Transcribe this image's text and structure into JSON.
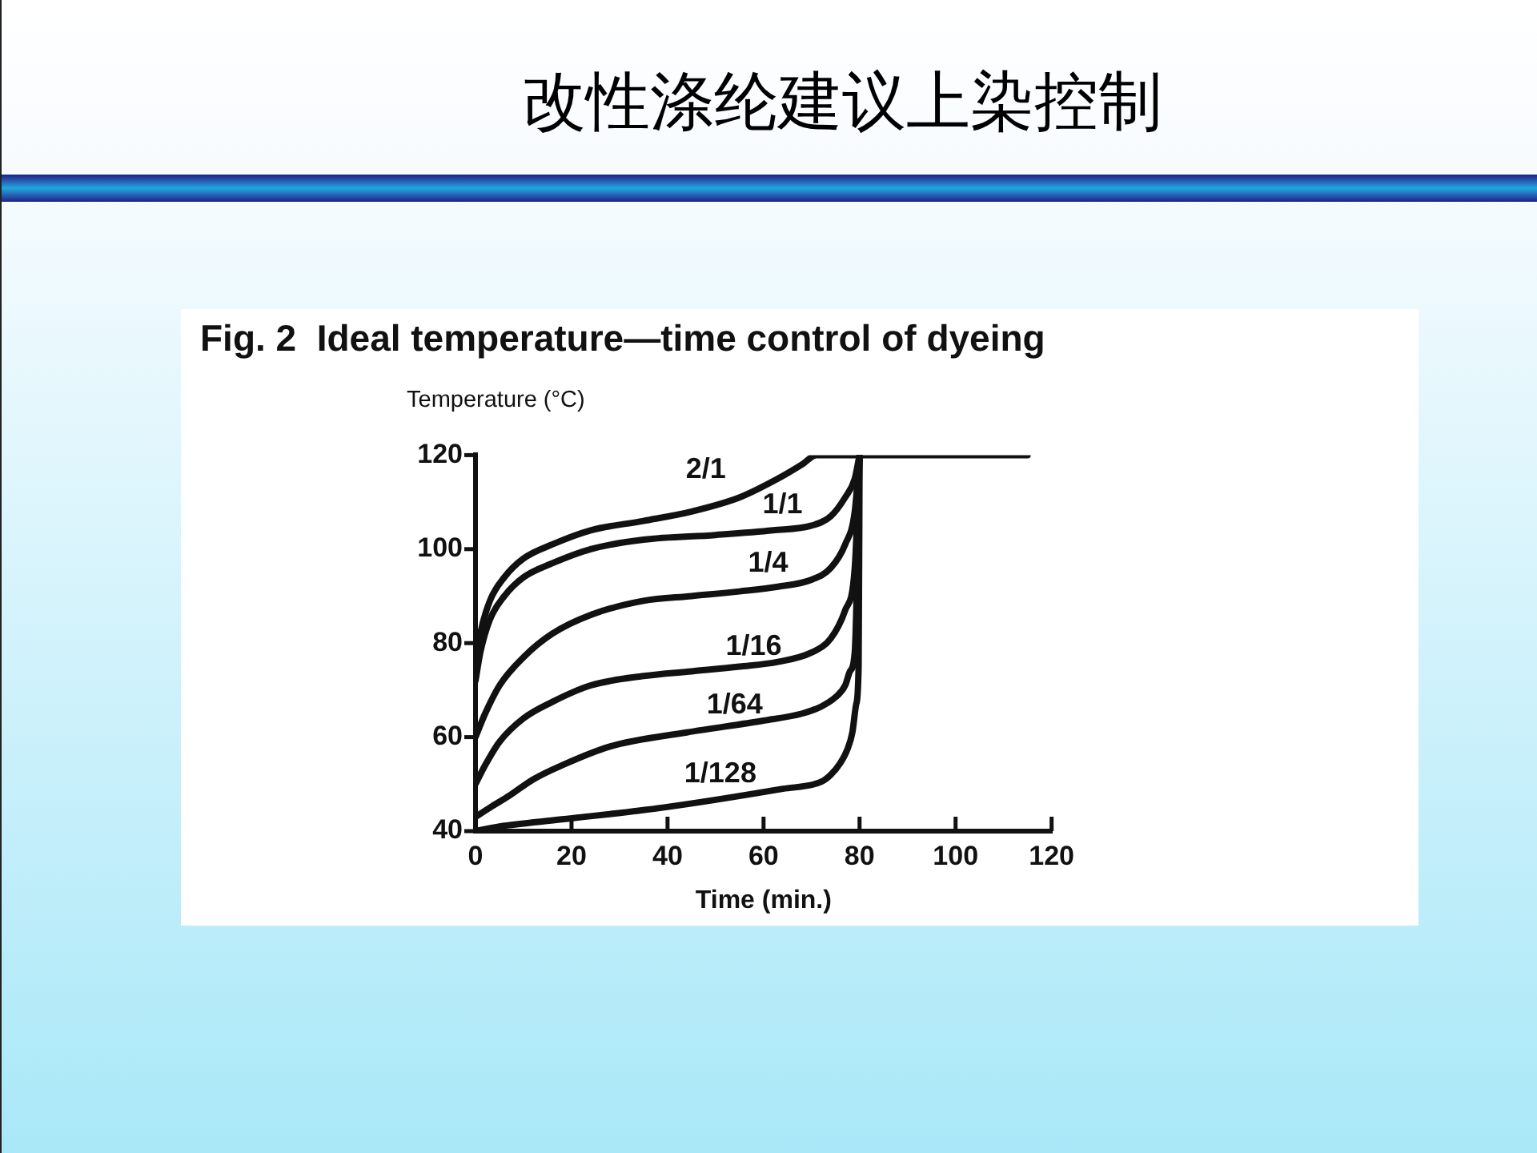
{
  "chart_data": {
    "type": "line",
    "title": "改性涤纶建议上染控制",
    "subtitle": "Fig. 2  Ideal temperature—time control of dyeing",
    "xlabel": "Time (min.)",
    "ylabel": "Temperature (°C)",
    "xlim": [
      0,
      120
    ],
    "xticks": [
      0,
      20,
      40,
      60,
      80,
      100,
      120
    ],
    "ylim": [
      40,
      120
    ],
    "yticks": [
      40,
      60,
      80,
      100,
      120
    ],
    "grid": false,
    "legend": false,
    "marker": "none",
    "line_style": "solid",
    "series": [
      {
        "name": "2/1",
        "color": "#111111",
        "x": [
          0,
          1,
          3,
          6,
          10,
          16,
          24,
          35,
          45,
          55,
          63,
          68,
          71,
          115
        ],
        "values": [
          75,
          82,
          89,
          94,
          98,
          101,
          104,
          106,
          108,
          111,
          115,
          118,
          120,
          120
        ]
      },
      {
        "name": "1/1",
        "color": "#111111",
        "x": [
          0,
          1,
          3,
          6,
          10,
          16,
          24,
          35,
          50,
          62,
          70,
          74,
          77,
          79,
          80
        ],
        "values": [
          72,
          78,
          85,
          90,
          94,
          97,
          100,
          102,
          103,
          104,
          105,
          107,
          111,
          115,
          120
        ]
      },
      {
        "name": "1/4",
        "color": "#111111",
        "x": [
          0,
          2,
          5,
          10,
          16,
          24,
          35,
          45,
          55,
          63,
          70,
          74,
          77,
          79,
          80
        ],
        "values": [
          60,
          65,
          71,
          77,
          82,
          86,
          89,
          90,
          91,
          92,
          93.5,
          96,
          101,
          108,
          120
        ]
      },
      {
        "name": "1/16",
        "color": "#111111",
        "x": [
          0,
          2,
          5,
          10,
          16,
          24,
          35,
          45,
          55,
          63,
          70,
          74,
          77,
          79,
          80
        ],
        "values": [
          50,
          54,
          59,
          64,
          67.5,
          71,
          73,
          74,
          75,
          76,
          78,
          81,
          87,
          96,
          120
        ]
      },
      {
        "name": "1/64",
        "color": "#111111",
        "x": [
          0,
          3,
          7,
          12,
          18,
          28,
          44,
          60,
          68,
          72,
          75,
          77,
          78,
          79,
          80
        ],
        "values": [
          43,
          45,
          47.5,
          51,
          54,
          58,
          61,
          63.5,
          65,
          66.5,
          68.5,
          71,
          74,
          78,
          120
        ]
      },
      {
        "name": "1/128",
        "color": "#111111",
        "x": [
          0,
          5,
          18,
          39,
          64,
          72,
          74,
          76,
          77.5,
          78.5,
          79.3,
          79.8,
          80
        ],
        "values": [
          40,
          41,
          42.5,
          45,
          49,
          50.5,
          52,
          54.5,
          57.5,
          61,
          67,
          75,
          120
        ]
      }
    ]
  }
}
